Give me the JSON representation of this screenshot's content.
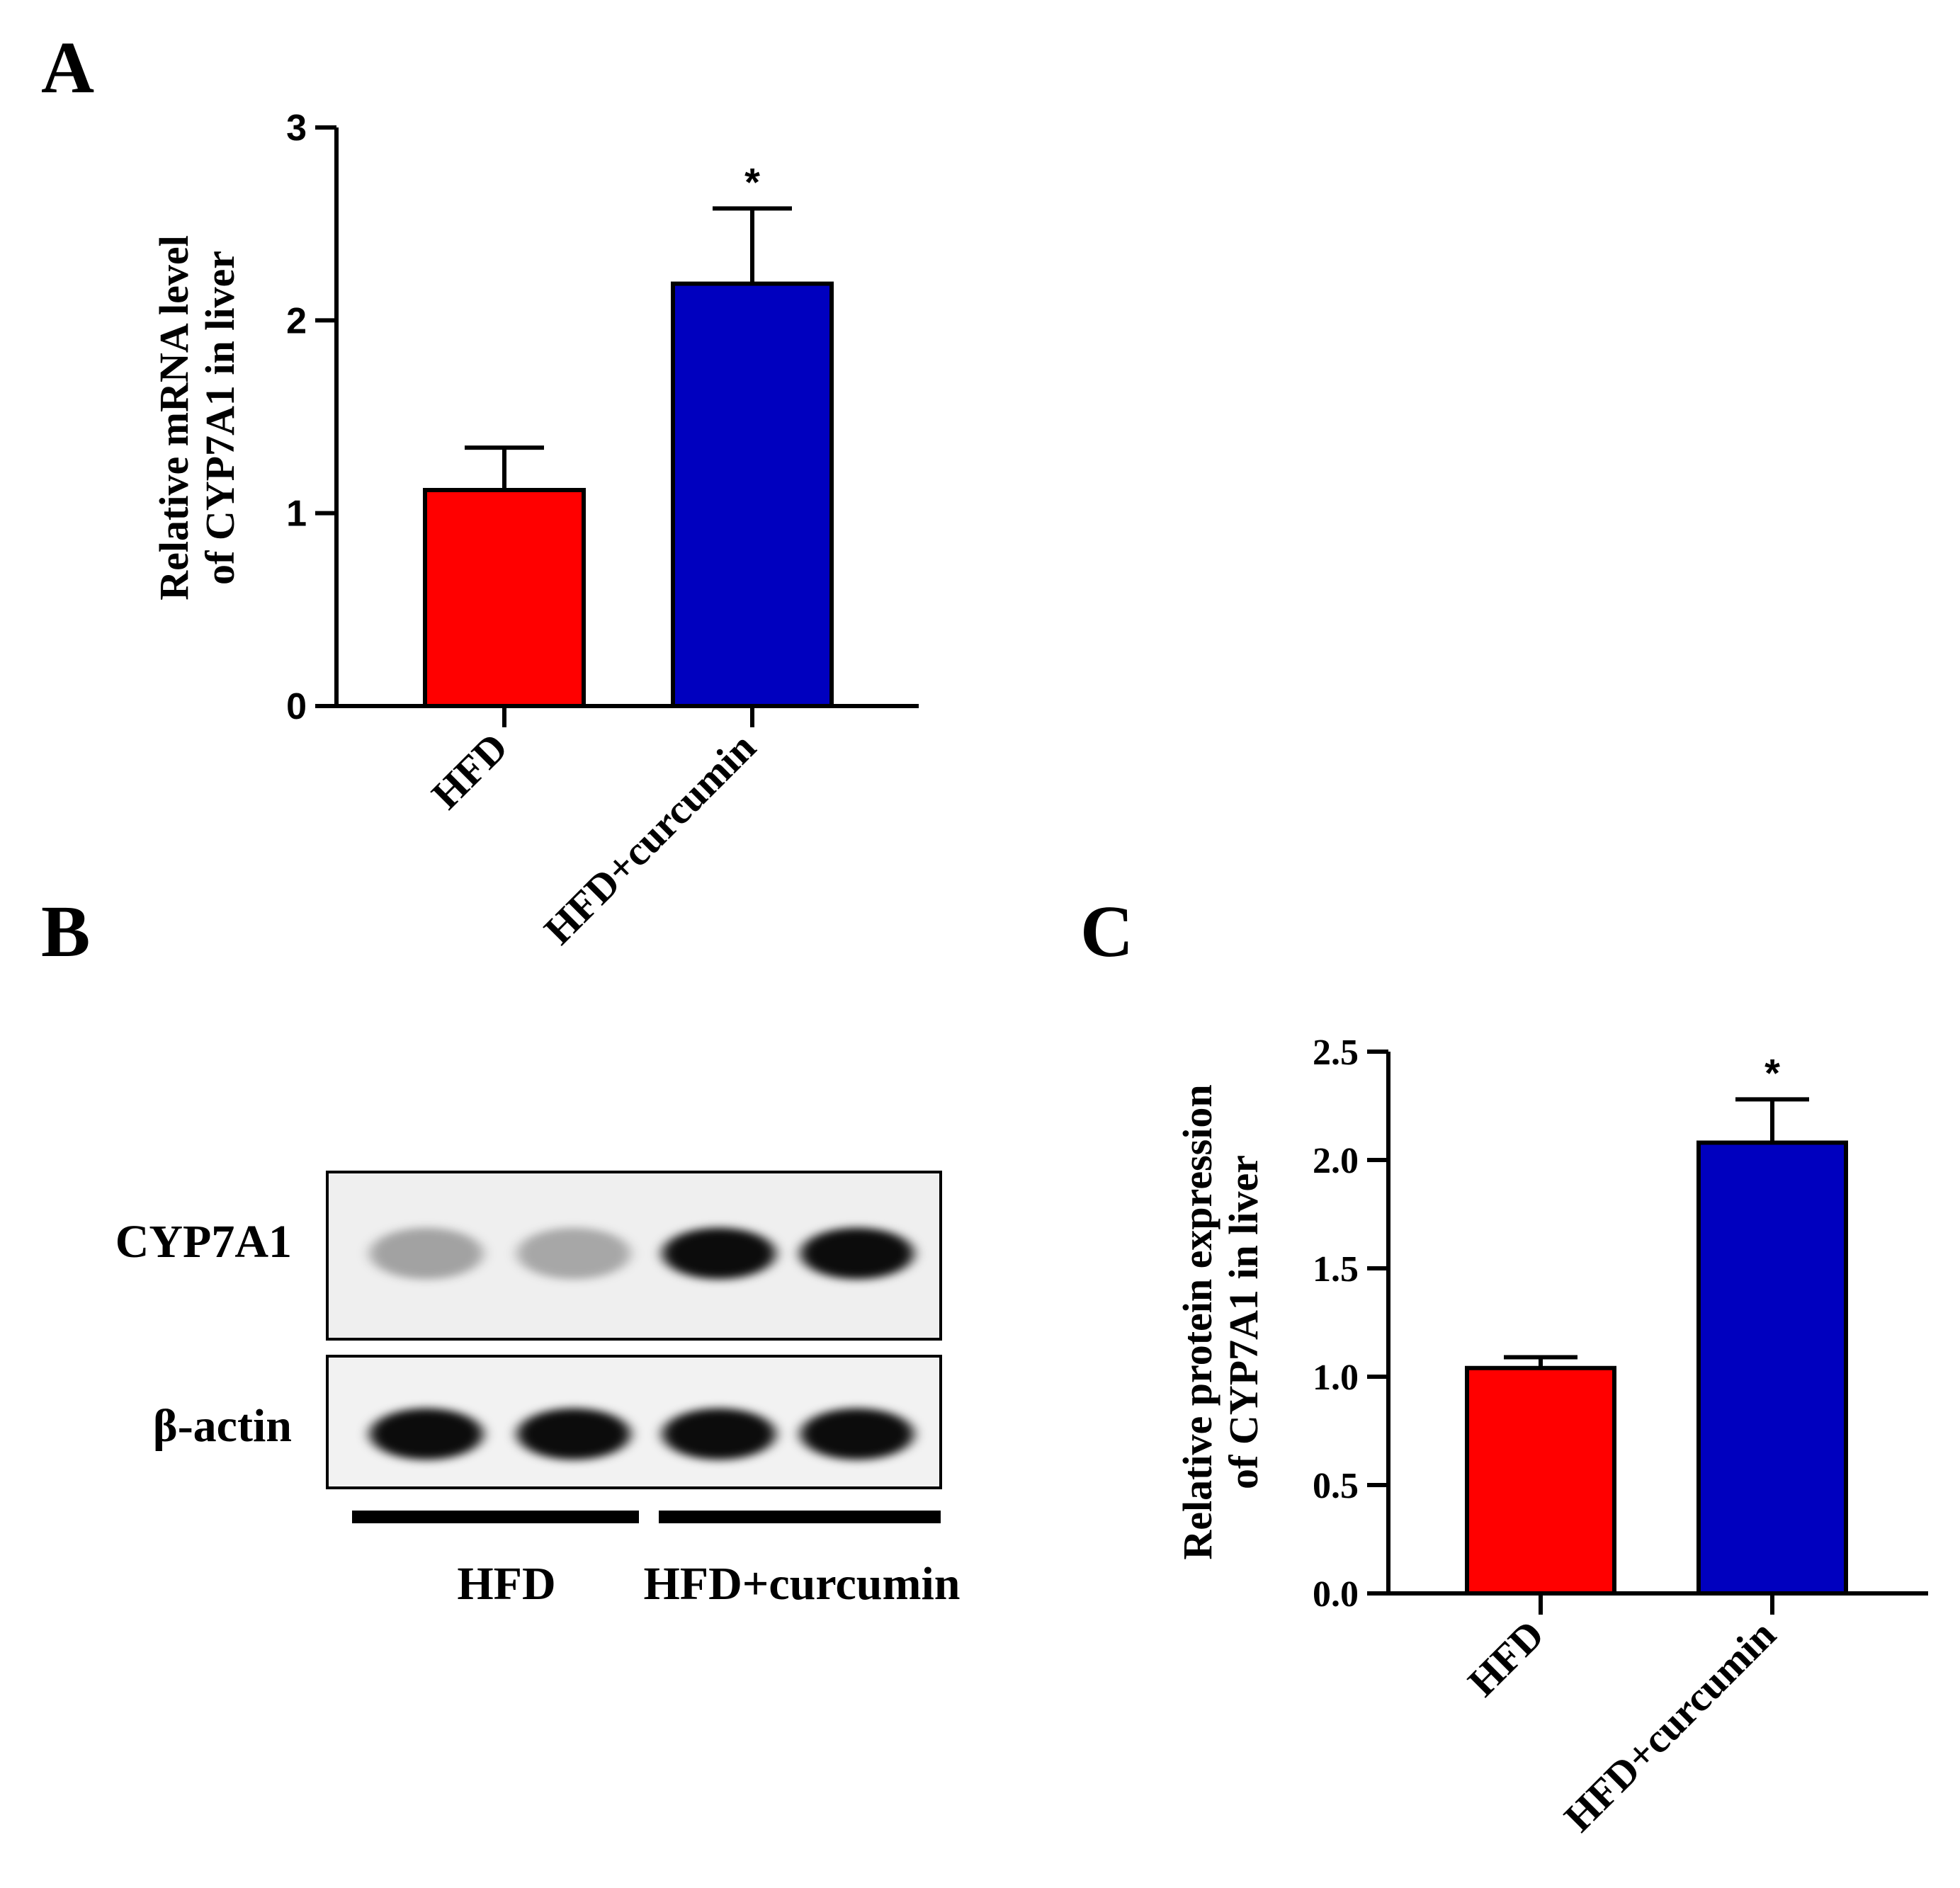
{
  "panels": {
    "a": "A",
    "b": "B",
    "c": "C"
  },
  "chart_data": [
    {
      "panel": "A",
      "type": "bar",
      "categories": [
        "HFD",
        "HFD+curcumin"
      ],
      "values": [
        1.12,
        2.19
      ],
      "errors": [
        0.22,
        0.39
      ],
      "significance": [
        "",
        "*"
      ],
      "colors": [
        "#ff0000",
        "#0000bf"
      ],
      "ylabel": [
        "Relative mRNA level",
        "of CYP7A1 in liver"
      ],
      "ylim": [
        0,
        3
      ],
      "yticks": [
        "0",
        "1",
        "2",
        "3"
      ]
    },
    {
      "panel": "C",
      "type": "bar",
      "categories": [
        "HFD",
        "HFD+curcumin"
      ],
      "values": [
        1.04,
        2.08
      ],
      "errors": [
        0.05,
        0.2
      ],
      "significance": [
        "",
        "*"
      ],
      "colors": [
        "#ff0000",
        "#0000bf"
      ],
      "ylabel": [
        "Relative protein expression",
        "of CYP7A1 in liver"
      ],
      "ylim": [
        0,
        2.5
      ],
      "yticks": [
        "0.0",
        "0.5",
        "1.0",
        "1.5",
        "2.0",
        "2.5"
      ]
    }
  ],
  "blot": {
    "rows": [
      {
        "label": "CYP7A1",
        "band_intensity": [
          0.32,
          0.3,
          0.95,
          0.95
        ]
      },
      {
        "label": "β-actin",
        "band_intensity": [
          0.95,
          0.95,
          0.95,
          0.95
        ]
      }
    ],
    "groups": [
      "HFD",
      "HFD+curcumin"
    ]
  }
}
